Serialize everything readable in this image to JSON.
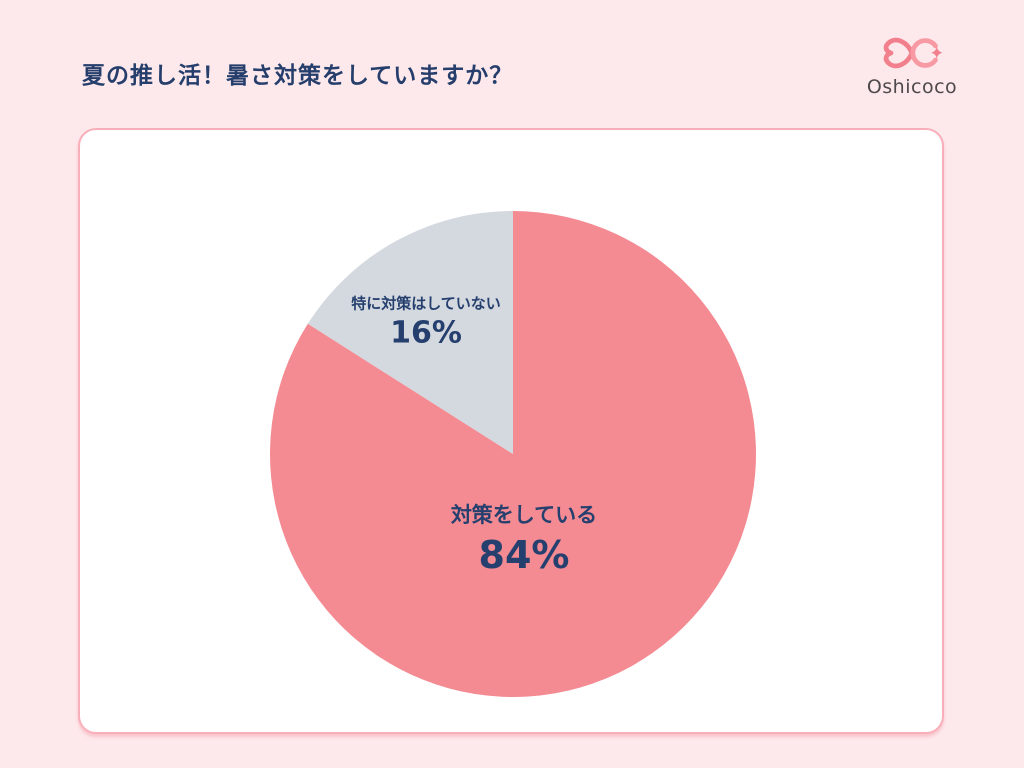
{
  "page": {
    "background_color": "#FDE9EC"
  },
  "header": {
    "title": "夏の推し活！暑さ対策をしていますか？",
    "title_color": "#253E6B",
    "logo": {
      "text": "Oshicoco",
      "text_color": "#4E494C",
      "mark": "double-heart-infinity-with-sparkle",
      "mark_color_left": "#F2808C",
      "mark_color_right": "#F79AA3"
    }
  },
  "card": {
    "background_color": "#FFFFFF",
    "border_color": "#F9AFBA"
  },
  "chart_data": {
    "type": "pie",
    "title": "夏の推し活！暑さ対策をしていますか？",
    "start_angle_deg": 0,
    "direction": "clockwise",
    "legend": "none",
    "label_color": "#25406E",
    "value_suffix": "%",
    "slices": [
      {
        "label": "対策をしている",
        "value": 84,
        "pct_label": "84%",
        "color": "#F48B92"
      },
      {
        "label": "特に対策はしていない",
        "value": 16,
        "pct_label": "16%",
        "color": "#D4D8DF"
      }
    ]
  }
}
